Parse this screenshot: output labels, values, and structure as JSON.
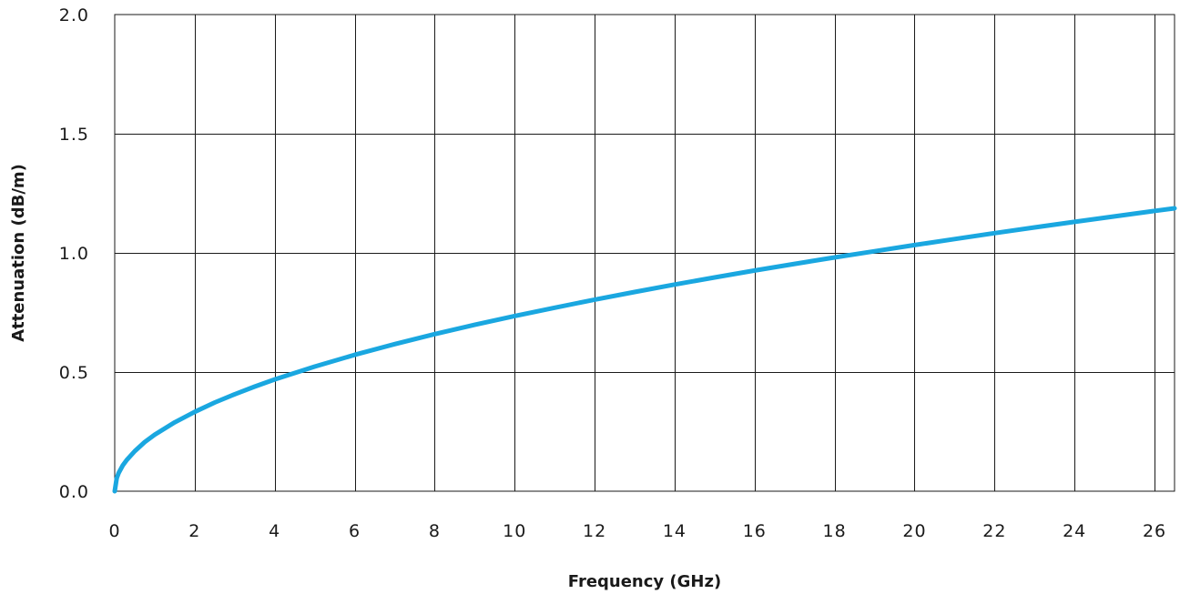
{
  "chart_data": {
    "type": "line",
    "title": "",
    "xlabel": "Frequency (GHz)",
    "ylabel": "Attenuation (dB/m)",
    "xlim": [
      0,
      26.5
    ],
    "ylim": [
      0,
      2.0
    ],
    "grid": true,
    "x_ticks": [
      0,
      2,
      4,
      6,
      8,
      10,
      12,
      14,
      16,
      18,
      20,
      22,
      24,
      26
    ],
    "x_tick_labels": [
      "0",
      "2",
      "4",
      "6",
      "8",
      "10",
      "12",
      "14",
      "16",
      "18",
      "20",
      "22",
      "24",
      "26"
    ],
    "y_ticks": [
      0,
      0.5,
      1.0,
      1.5,
      2.0
    ],
    "y_tick_labels": [
      "0.0",
      "0.5",
      "1.0",
      "1.5",
      "2.0"
    ],
    "series": [
      {
        "color": "#1aa7e0",
        "x": [
          0,
          0.05,
          0.1,
          0.2,
          0.3,
          0.5,
          0.75,
          1,
          1.5,
          2,
          2.5,
          3,
          3.5,
          4,
          5,
          6,
          7,
          8,
          9,
          10,
          11,
          12,
          13,
          14,
          15,
          16,
          17,
          18,
          19,
          20,
          21,
          22,
          23,
          24,
          25,
          26,
          26.5
        ],
        "y": [
          0,
          0.055,
          0.077,
          0.108,
          0.131,
          0.168,
          0.206,
          0.237,
          0.289,
          0.333,
          0.372,
          0.407,
          0.439,
          0.469,
          0.523,
          0.572,
          0.617,
          0.659,
          0.698,
          0.735,
          0.77,
          0.804,
          0.836,
          0.867,
          0.897,
          0.926,
          0.954,
          0.981,
          1.007,
          1.033,
          1.058,
          1.083,
          1.107,
          1.13,
          1.153,
          1.176,
          1.187
        ]
      }
    ]
  }
}
